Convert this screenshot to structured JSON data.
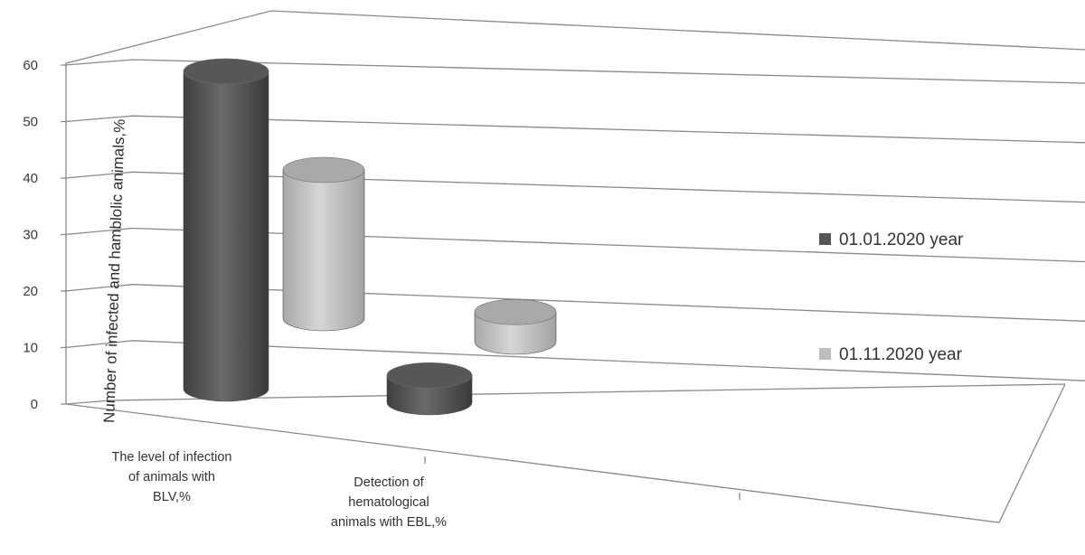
{
  "chart_data": {
    "type": "bar",
    "style": "3d-cylinder",
    "categories": [
      [
        "The level of infection",
        "of animals with",
        "BLV,%"
      ],
      [
        "Detection of",
        "hematological",
        "animals with EBL,%"
      ]
    ],
    "series": [
      {
        "name": "01.01.2020 year",
        "color": "#555555",
        "values": [
          59,
          5
        ]
      },
      {
        "name": "01.11.2020 year",
        "color": "#bdbdbd",
        "values": [
          40,
          8
        ]
      }
    ],
    "ylabel": "Number of infected and hamblolic animals,%",
    "ylim": [
      0,
      60
    ],
    "yticks": [
      0,
      10,
      20,
      30,
      40,
      50,
      60
    ],
    "grid": true,
    "legend": "right"
  }
}
